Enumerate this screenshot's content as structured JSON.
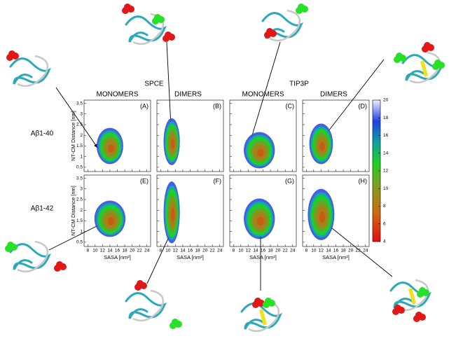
{
  "column_groups": [
    "SPCE",
    "TIP3P"
  ],
  "columns": [
    "MONOMERS",
    "DIMERS",
    "MONOMERS",
    "DIMERS"
  ],
  "rows": [
    "Aβ1-40",
    "Aβ1-42"
  ],
  "panels": [
    "(A)",
    "(B)",
    "(C)",
    "(D)",
    "(E)",
    "(F)",
    "(G)",
    "(H)"
  ],
  "axes": {
    "xlabel": "SASA [nm²]",
    "ylabel": "NT-CM Distance [nm]",
    "xlim": [
      7,
      25
    ],
    "xticks": [
      8,
      10,
      12,
      14,
      16,
      18,
      20,
      22,
      24
    ],
    "ylim": [
      0.3,
      3.65
    ],
    "yticks": [
      0.5,
      1,
      1.5,
      2,
      2.5,
      3,
      3.5
    ]
  },
  "colorbar": {
    "lim": [
      4,
      20
    ],
    "ticks": [
      4,
      6,
      8,
      10,
      12,
      14,
      16,
      18,
      20
    ]
  }
}
